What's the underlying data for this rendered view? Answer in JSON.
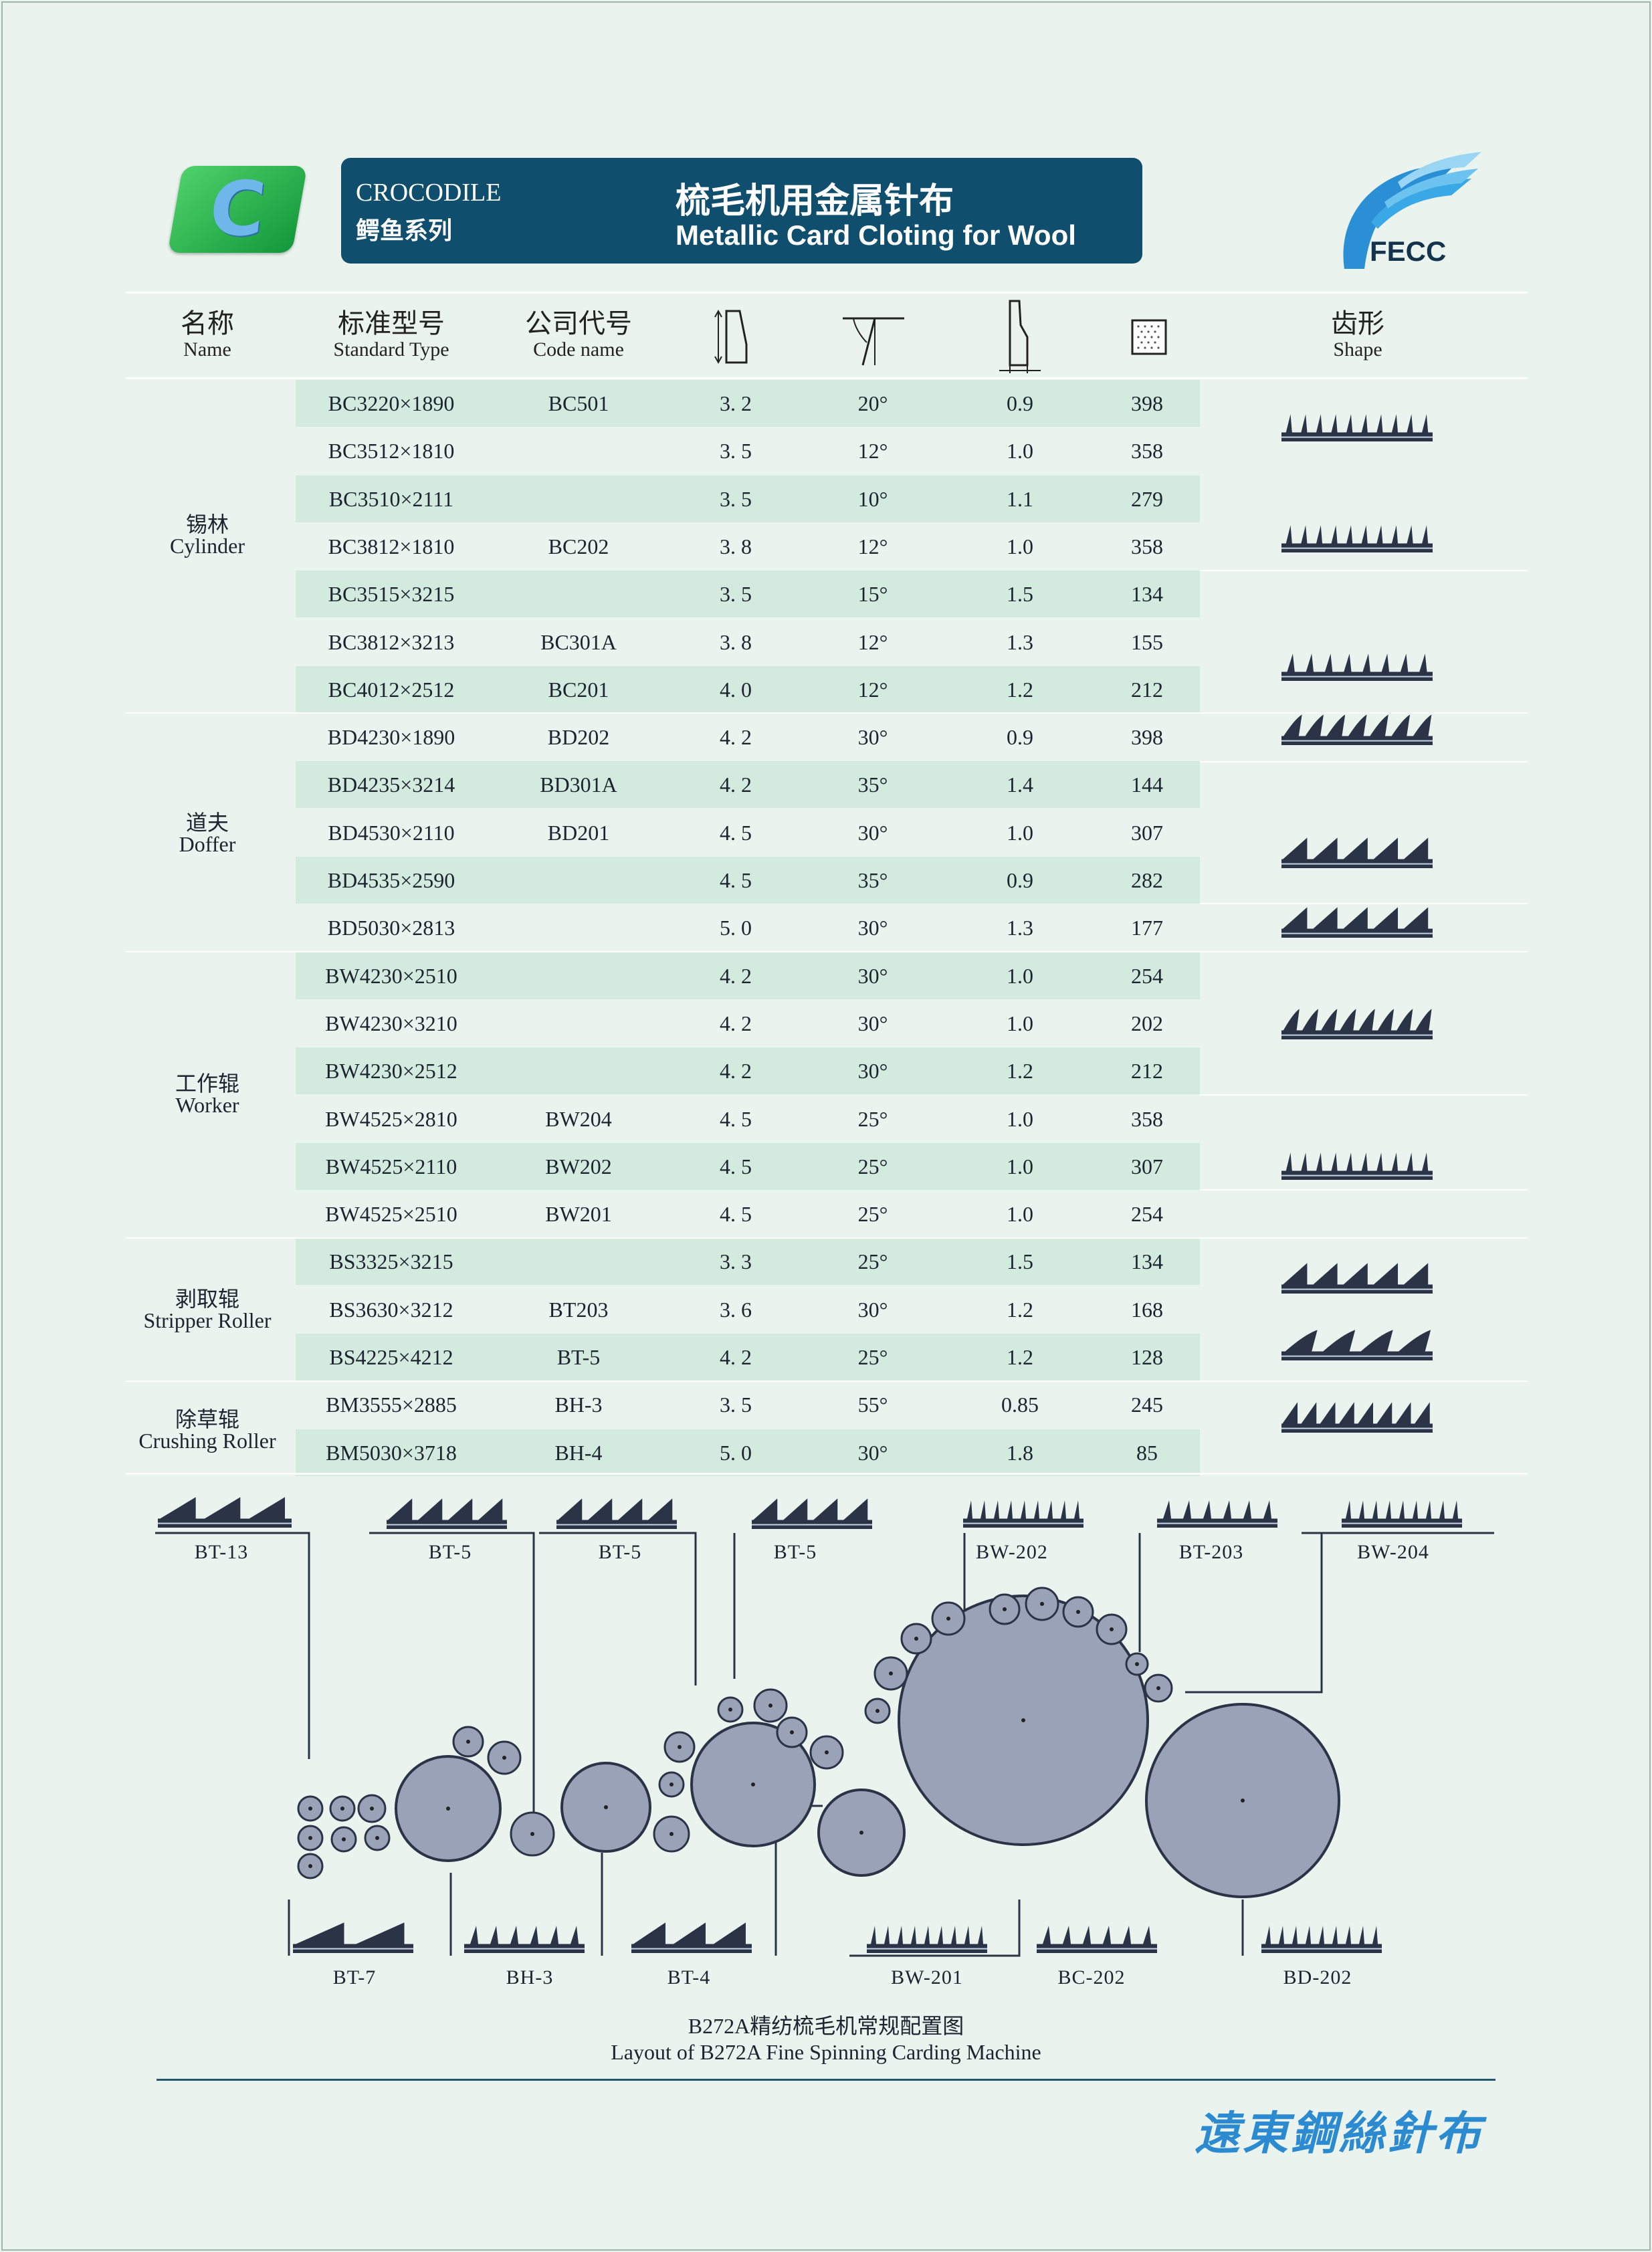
{
  "header": {
    "logo_letter": "C",
    "brand_en": "CROCODILE",
    "brand_zh": "鳄鱼系列",
    "title_zh": "梳毛机用金属针布",
    "title_en": "Metallic Card Cloting for Wool",
    "company_logo": "FECC"
  },
  "columns": {
    "name_zh": "名称",
    "name_en": "Name",
    "type_zh": "标准型号",
    "type_en": "Standard  Type",
    "code_zh": "公司代号",
    "code_en": "Code  name",
    "height_icon": "total-height-icon",
    "angle_icon": "tooth-angle-icon",
    "thickness_icon": "rib-thickness-icon",
    "density_icon": "point-density-icon",
    "shape_zh": "齿形",
    "shape_en": "Shape"
  },
  "groups": [
    {
      "zh": "锡林",
      "en": "Cylinder"
    },
    {
      "zh": "道夫",
      "en": "Doffer"
    },
    {
      "zh": "工作辊",
      "en": "Worker"
    },
    {
      "zh": "剥取辊",
      "en": "Stripper  Roller"
    },
    {
      "zh": "除草辊",
      "en": "Crushing  Roller"
    }
  ],
  "rows": [
    {
      "type": "BC3220×1890",
      "code": "BC501",
      "h": "3. 2",
      "angle": "20°",
      "t": "0.9",
      "d": "398"
    },
    {
      "type": "BC3512×1810",
      "code": "",
      "h": "3. 5",
      "angle": "12°",
      "t": "1.0",
      "d": "358"
    },
    {
      "type": "BC3510×2111",
      "code": "",
      "h": "3. 5",
      "angle": "10°",
      "t": "1.1",
      "d": "279"
    },
    {
      "type": "BC3812×1810",
      "code": "BC202",
      "h": "3. 8",
      "angle": "12°",
      "t": "1.0",
      "d": "358"
    },
    {
      "type": "BC3515×3215",
      "code": "",
      "h": "3. 5",
      "angle": "15°",
      "t": "1.5",
      "d": "134"
    },
    {
      "type": "BC3812×3213",
      "code": "BC301A",
      "h": "3. 8",
      "angle": "12°",
      "t": "1.3",
      "d": "155"
    },
    {
      "type": "BC4012×2512",
      "code": "BC201",
      "h": "4. 0",
      "angle": "12°",
      "t": "1.2",
      "d": "212"
    },
    {
      "type": "BD4230×1890",
      "code": "BD202",
      "h": "4. 2",
      "angle": "30°",
      "t": "0.9",
      "d": "398"
    },
    {
      "type": "BD4235×3214",
      "code": "BD301A",
      "h": "4. 2",
      "angle": "35°",
      "t": "1.4",
      "d": "144"
    },
    {
      "type": "BD4530×2110",
      "code": "BD201",
      "h": "4. 5",
      "angle": "30°",
      "t": "1.0",
      "d": "307"
    },
    {
      "type": "BD4535×2590",
      "code": "",
      "h": "4. 5",
      "angle": "35°",
      "t": "0.9",
      "d": "282"
    },
    {
      "type": "BD5030×2813",
      "code": "",
      "h": "5. 0",
      "angle": "30°",
      "t": "1.3",
      "d": "177"
    },
    {
      "type": "BW4230×2510",
      "code": "",
      "h": "4. 2",
      "angle": "30°",
      "t": "1.0",
      "d": "254"
    },
    {
      "type": "BW4230×3210",
      "code": "",
      "h": "4. 2",
      "angle": "30°",
      "t": "1.0",
      "d": "202"
    },
    {
      "type": "BW4230×2512",
      "code": "",
      "h": "4. 2",
      "angle": "30°",
      "t": "1.2",
      "d": "212"
    },
    {
      "type": "BW4525×2810",
      "code": "BW204",
      "h": "4. 5",
      "angle": "25°",
      "t": "1.0",
      "d": "358"
    },
    {
      "type": "BW4525×2110",
      "code": "BW202",
      "h": "4. 5",
      "angle": "25°",
      "t": "1.0",
      "d": "307"
    },
    {
      "type": "BW4525×2510",
      "code": "BW201",
      "h": "4. 5",
      "angle": "25°",
      "t": "1.0",
      "d": "254"
    },
    {
      "type": "BS3325×3215",
      "code": "",
      "h": "3. 3",
      "angle": "25°",
      "t": "1.5",
      "d": "134"
    },
    {
      "type": "BS3630×3212",
      "code": "BT203",
      "h": "3. 6",
      "angle": "30°",
      "t": "1.2",
      "d": "168"
    },
    {
      "type": "BS4225×4212",
      "code": "BT-5",
      "h": "4. 2",
      "angle": "25°",
      "t": "1.2",
      "d": "128"
    },
    {
      "type": "BM3555×2885",
      "code": "BH-3",
      "h": "3. 5",
      "angle": "55°",
      "t": "0.85",
      "d": "245"
    },
    {
      "type": "BM5030×3718",
      "code": "BH-4",
      "h": "5. 0",
      "angle": "30°",
      "t": "1.8",
      "d": "85"
    }
  ],
  "diagram": {
    "top_labels": [
      "BT-13",
      "BT-5",
      "BT-5",
      "BT-5",
      "BW-202",
      "BT-203",
      "BW-204"
    ],
    "bottom_labels": [
      "BT-7",
      "BH-3",
      "BT-4",
      "BW-201",
      "BC-202",
      "BD-202"
    ],
    "caption_zh": "B272A精纺梳毛机常规配置图",
    "caption_en": "Layout of B272A Fine Spinning Carding Machine"
  },
  "footer": {
    "mark_zh": "遠東鋼絲針布"
  },
  "colors": {
    "banner": "#0f4e6d",
    "band": "#d3ebdf",
    "background": "#eaf3ee",
    "roller": "#9aa2b8",
    "logo_green": "#23b24a"
  }
}
